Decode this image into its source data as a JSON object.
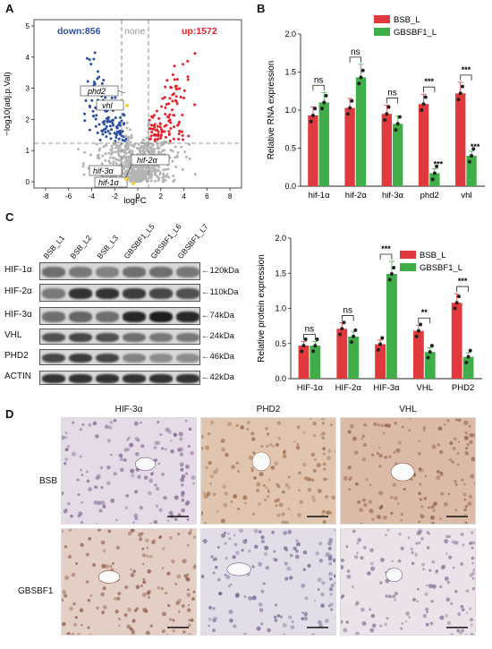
{
  "panels": {
    "a": "A",
    "b": "B",
    "c": "C",
    "d": "D"
  },
  "volcano": {
    "down_label": "down:856",
    "none_label": "none",
    "up_label": "up:1572",
    "xlabel": "logFC",
    "ylabel": "−log10(adj.p.Val)",
    "xticks": [
      "-8",
      "-6",
      "-4",
      "-2",
      "0",
      "2",
      "4",
      "6",
      "8"
    ],
    "yticks": [
      "0",
      "1",
      "2",
      "3",
      "4",
      "5"
    ],
    "gene_labels": [
      "phd2",
      "vhl",
      "hif-2α",
      "hif-3α",
      "hif-1α"
    ],
    "colors": {
      "down": "#2b4fa6",
      "none": "#b5b5b5",
      "up": "#e8202a"
    }
  },
  "chart_data": [
    {
      "type": "bar",
      "ylabel": "Relative RNA expression",
      "categories": [
        "hif-1α",
        "hif-2α",
        "hif-3α",
        "phd2",
        "vhl"
      ],
      "series": [
        {
          "name": "BSB_L",
          "values": [
            0.93,
            1.03,
            0.95,
            1.08,
            1.22
          ]
        },
        {
          "name": "GBSBF1_L",
          "values": [
            1.1,
            1.43,
            0.82,
            0.17,
            0.4
          ]
        }
      ],
      "significance": [
        "ns",
        "ns",
        "ns",
        "***",
        "***"
      ],
      "second_star": [
        "",
        "",
        "",
        "***",
        "***"
      ],
      "ylim": [
        0,
        2.0
      ],
      "yticks": [
        "0.0",
        "0.5",
        "1.0",
        "1.5",
        "2.0"
      ],
      "legend": "top-right",
      "colors": [
        "#e03a3e",
        "#3fae49"
      ]
    },
    {
      "type": "bar",
      "ylabel": "Relative protein expression",
      "categories": [
        "HIF-1α",
        "HIF-2α",
        "HIF-3α",
        "VHL",
        "PHD2"
      ],
      "series": [
        {
          "name": "BSB_L",
          "values": [
            0.47,
            0.71,
            0.49,
            0.68,
            1.08
          ]
        },
        {
          "name": "GBSBF1_L",
          "values": [
            0.47,
            0.6,
            1.49,
            0.38,
            0.31
          ]
        }
      ],
      "significance": [
        "ns",
        "ns",
        "***",
        "**",
        "***"
      ],
      "ylim": [
        0,
        2.0
      ],
      "yticks": [
        "0.0",
        "0.5",
        "1.0",
        "1.5",
        "2.0"
      ],
      "legend": "top-right",
      "colors": [
        "#e03a3e",
        "#3fae49"
      ]
    }
  ],
  "blot": {
    "lanes": [
      "BSB_L1",
      "BSB_L2",
      "BSB_L3",
      "GBSBF1_L5",
      "GBSBF1_L6",
      "GBSBF1_L7"
    ],
    "proteins": [
      "HIF-1α",
      "HIF-2α",
      "HIF-3α",
      "VHL",
      "PHD2",
      "ACTIN"
    ],
    "sizes": [
      "120kDa",
      "110kDa",
      "74kDa",
      "24kDa",
      "46kDa",
      "42kDa"
    ]
  },
  "ihc": {
    "columns": [
      "HIF-3α",
      "PHD2",
      "VHL"
    ],
    "rows": [
      "BSB",
      "GBSBF1"
    ]
  }
}
